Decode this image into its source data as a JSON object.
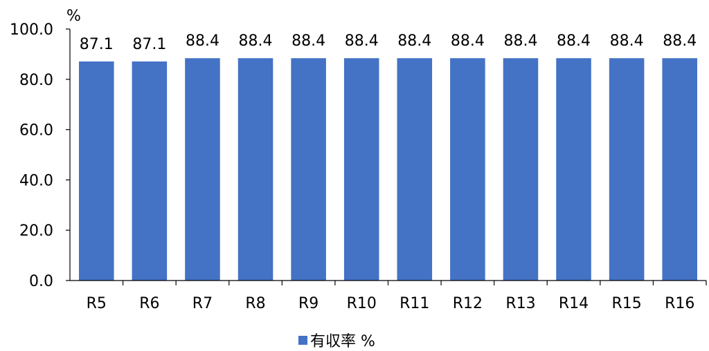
{
  "chart_data": {
    "type": "bar",
    "unit_label": "%",
    "categories": [
      "R5",
      "R6",
      "R7",
      "R8",
      "R9",
      "R10",
      "R11",
      "R12",
      "R13",
      "R14",
      "R15",
      "R16"
    ],
    "series": [
      {
        "name": "有収率 %",
        "color": "#4472C4",
        "values": [
          87.1,
          87.1,
          88.4,
          88.4,
          88.4,
          88.4,
          88.4,
          88.4,
          88.4,
          88.4,
          88.4,
          88.4
        ]
      }
    ],
    "data_labels": [
      "87.1",
      "87.1",
      "88.4",
      "88.4",
      "88.4",
      "88.4",
      "88.4",
      "88.4",
      "88.4",
      "88.4",
      "88.4",
      "88.4"
    ],
    "ylim": [
      0,
      100
    ],
    "yticks": [
      "0.0",
      "20.0",
      "40.0",
      "60.0",
      "80.0",
      "100.0"
    ],
    "grid": false,
    "legend_position": "bottom"
  }
}
